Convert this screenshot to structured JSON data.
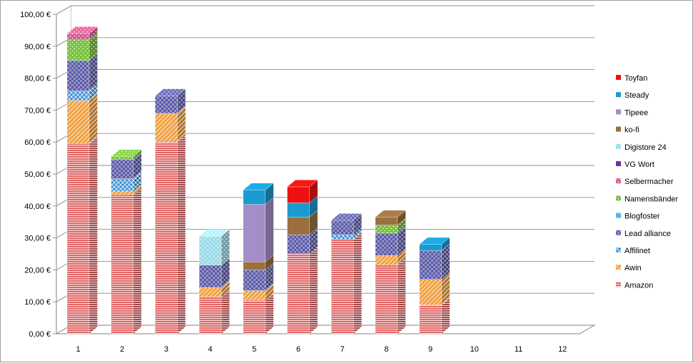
{
  "chart_data": {
    "type": "bar",
    "stacked": true,
    "three_d": true,
    "categories": [
      "1",
      "2",
      "3",
      "4",
      "5",
      "6",
      "7",
      "8",
      "9",
      "10",
      "11",
      "12"
    ],
    "y_tick_labels": [
      "0,00 €",
      "10,00 €",
      "20,00 €",
      "30,00 €",
      "40,00 €",
      "50,00 €",
      "60,00 €",
      "70,00 €",
      "80,00 €",
      "90,00 €",
      "100,00 €"
    ],
    "ylim": [
      0,
      100
    ],
    "y_step": 10,
    "grid": true,
    "legend_position": "right",
    "series": [
      {
        "name": "Amazon",
        "color": "#e06666",
        "pattern": "horiz",
        "values": [
          59.5,
          43.5,
          60,
          11.5,
          10.5,
          25,
          29.5,
          21.5,
          9,
          0,
          0,
          0
        ]
      },
      {
        "name": "Awin",
        "color": "#f0a040",
        "pattern": "diag",
        "values": [
          13.5,
          1,
          9,
          3,
          3,
          0,
          0,
          3,
          8,
          0,
          0,
          0
        ]
      },
      {
        "name": "Affilinet",
        "color": "#3a8fd0",
        "pattern": "cross",
        "values": [
          3,
          4,
          0,
          0,
          0,
          0,
          1.5,
          0,
          0,
          0,
          0,
          0
        ]
      },
      {
        "name": "Lead alliance",
        "color": "#5a5aa8",
        "pattern": "check",
        "values": [
          9.5,
          6,
          5.5,
          7,
          6.5,
          6,
          4.5,
          7,
          9,
          0,
          0,
          0
        ]
      },
      {
        "name": "Blogfoster",
        "color": "#56b4e9",
        "pattern": "solid",
        "values": [
          0,
          0,
          0,
          0,
          0,
          0,
          0,
          0,
          0,
          0,
          0,
          0
        ]
      },
      {
        "name": "Namensbänder",
        "color": "#7ac142",
        "pattern": "dots",
        "values": [
          6.5,
          1,
          0,
          0,
          0,
          0,
          0,
          2.5,
          0,
          0,
          0,
          0
        ]
      },
      {
        "name": "Selbermacher",
        "color": "#d06090",
        "pattern": "dots",
        "values": [
          2,
          0,
          0,
          0,
          0,
          0,
          0,
          0,
          0,
          0,
          0,
          0
        ]
      },
      {
        "name": "VG Wort",
        "color": "#7030a0",
        "pattern": "solid",
        "values": [
          0,
          0,
          0,
          0,
          0,
          0,
          0,
          0,
          0,
          0,
          0,
          0
        ]
      },
      {
        "name": "Digistore 24",
        "color": "#a0dce8",
        "pattern": "dots",
        "values": [
          0,
          0,
          0,
          9,
          0,
          0,
          0,
          0,
          0,
          0,
          0,
          0
        ]
      },
      {
        "name": "ko-fi",
        "color": "#9a7040",
        "pattern": "solid",
        "values": [
          0,
          0,
          0,
          0,
          2.5,
          5.5,
          0,
          2.5,
          0,
          0,
          0,
          0
        ]
      },
      {
        "name": "Tipeee",
        "color": "#a48ec8",
        "pattern": "solid",
        "values": [
          0,
          0,
          0,
          0,
          18,
          0,
          0,
          0,
          0,
          0,
          0,
          0
        ]
      },
      {
        "name": "Steady",
        "color": "#1a9ad0",
        "pattern": "solid",
        "values": [
          0,
          0,
          0,
          0,
          4.5,
          4.5,
          0,
          0,
          2,
          0,
          0,
          0
        ]
      },
      {
        "name": "Toyfan",
        "color": "#ee1111",
        "pattern": "solid",
        "values": [
          0,
          0,
          0,
          0,
          0,
          5,
          0,
          0,
          0,
          0,
          0,
          0
        ]
      }
    ]
  }
}
